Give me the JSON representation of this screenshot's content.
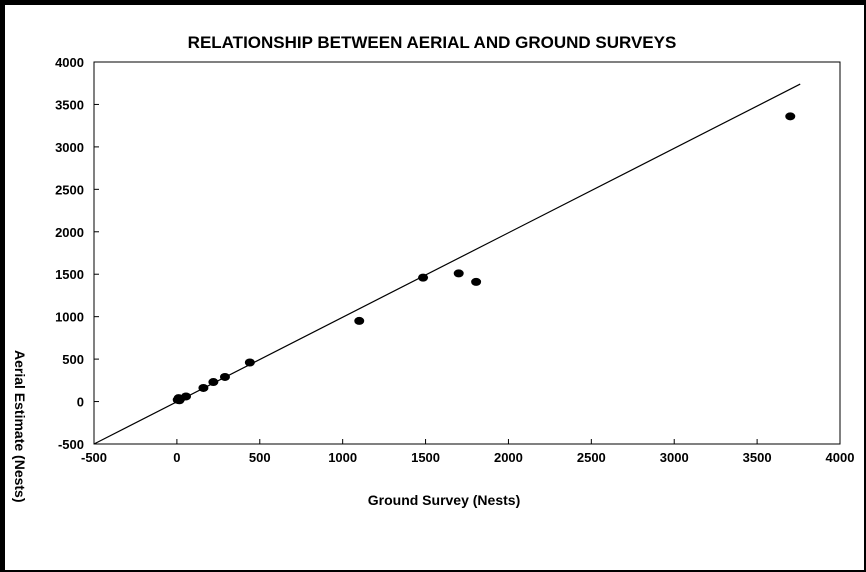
{
  "chart_data": {
    "type": "scatter",
    "title": "RELATIONSHIP BETWEEN AERIAL AND GROUND SURVEYS",
    "xlabel": "Ground Survey (Nests)",
    "ylabel": "Aerial Estimate (Nests)",
    "xlim": [
      -500,
      4000
    ],
    "ylim": [
      -500,
      4000
    ],
    "xticks": [
      -500,
      0,
      500,
      1000,
      1500,
      2000,
      2500,
      3000,
      3500,
      4000
    ],
    "yticks": [
      -500,
      0,
      500,
      1000,
      1500,
      2000,
      2500,
      3000,
      3500,
      4000
    ],
    "series": [
      {
        "points": [
          {
            "x": 5,
            "y": 20
          },
          {
            "x": 10,
            "y": 40
          },
          {
            "x": 15,
            "y": 15
          },
          {
            "x": 20,
            "y": 30
          },
          {
            "x": 55,
            "y": 60
          },
          {
            "x": 160,
            "y": 160
          },
          {
            "x": 220,
            "y": 230
          },
          {
            "x": 290,
            "y": 290
          },
          {
            "x": 440,
            "y": 460
          },
          {
            "x": 1100,
            "y": 950
          },
          {
            "x": 1485,
            "y": 1460
          },
          {
            "x": 1700,
            "y": 1510
          },
          {
            "x": 1805,
            "y": 1410
          },
          {
            "x": 3700,
            "y": 3360
          }
        ]
      }
    ],
    "reference_line": {
      "from": [
        -500,
        -500
      ],
      "to": [
        3760,
        3740
      ]
    },
    "grid": false,
    "legend": "none"
  },
  "colors": {
    "points": "#000000",
    "line": "#000000",
    "frame": "#000000",
    "background": "#ffffff"
  }
}
